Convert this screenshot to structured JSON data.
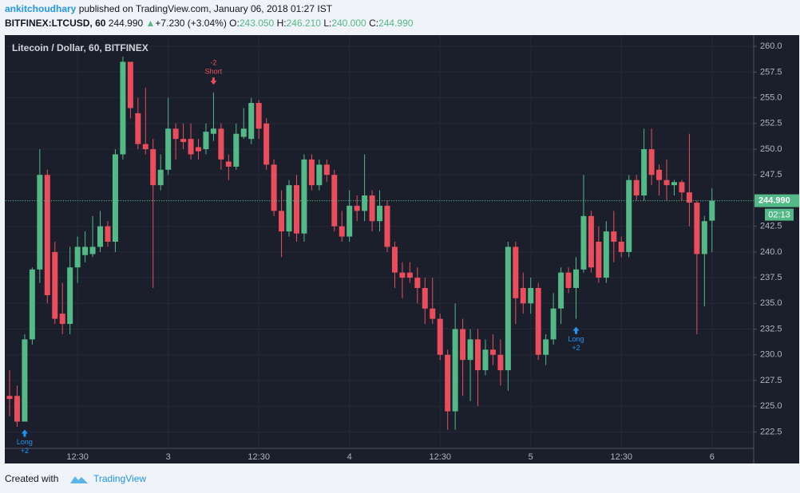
{
  "header": {
    "author": "ankitchoudhary",
    "published": "published on TradingView.com, January 06, 2018 01:27 IST",
    "symbol": "BITFINEX:LTCUSD, 60",
    "price": "244.990",
    "arrow": "▲",
    "change": "+7.230 (+3.04%)",
    "ohlc": [
      {
        "label": "O:",
        "value": "243.050"
      },
      {
        "label": "H:",
        "value": "246.210"
      },
      {
        "label": "L:",
        "value": "240.000"
      },
      {
        "label": "C:",
        "value": "244.990"
      }
    ]
  },
  "chart_data": {
    "type": "candlestick",
    "title": "Litecoin / Dollar, 60, BITFINEX",
    "categories": [
      null,
      null,
      null,
      null,
      null,
      null,
      null,
      null,
      null,
      "12:30",
      null,
      null,
      null,
      null,
      null,
      null,
      null,
      null,
      null,
      null,
      null,
      "3",
      null,
      null,
      null,
      null,
      null,
      null,
      null,
      null,
      null,
      null,
      null,
      "12:30",
      null,
      null,
      null,
      null,
      null,
      null,
      null,
      null,
      null,
      null,
      null,
      "4",
      null,
      null,
      null,
      null,
      null,
      null,
      null,
      null,
      null,
      null,
      null,
      "12:30",
      null,
      null,
      null,
      null,
      null,
      null,
      null,
      null,
      null,
      null,
      null,
      "5",
      null,
      null,
      null,
      null,
      null,
      null,
      null,
      null,
      null,
      null,
      null,
      "12:30",
      null,
      null,
      null,
      null,
      null,
      null,
      null,
      null,
      null,
      null,
      null,
      "6"
    ],
    "open": [
      226,
      226,
      223.5,
      231.5,
      238.3,
      247.5,
      240,
      234,
      233,
      238.5,
      239.7,
      239.8,
      240.5,
      242.5,
      241,
      249.5,
      258.5,
      253.5,
      250.5,
      250,
      246.5,
      248,
      252,
      251,
      251,
      250.2,
      250,
      251.5,
      252,
      248.8,
      248.3,
      251.2,
      251,
      254.5,
      252.5,
      248.5,
      244,
      242,
      246.5,
      241.8,
      249,
      246.5,
      248.5,
      247.5,
      242.5,
      241.5,
      244.5,
      244,
      245.5,
      243,
      244.5,
      240.5,
      238,
      238,
      237.5,
      236.5,
      234.5,
      233.5,
      230,
      224.5,
      232.5,
      229.5,
      231.5,
      228.5,
      230.5,
      230,
      228.5,
      240.5,
      236.5,
      235,
      236.5,
      230,
      231.5,
      234.5,
      238,
      236.5,
      238.3,
      243.5,
      241,
      237.5,
      242,
      241,
      240,
      247,
      245.5,
      250,
      248,
      247,
      246.5,
      246.8,
      245.8,
      244.8,
      239.8,
      243.05
    ],
    "high": [
      228.5,
      227,
      232,
      238.5,
      250,
      248,
      241,
      237,
      240.5,
      241.5,
      242,
      243.5,
      244,
      243,
      250,
      259,
      258.5,
      255,
      256,
      251,
      249.5,
      255,
      252.5,
      252.5,
      252.5,
      251,
      252.5,
      255.5,
      252.5,
      249.5,
      252.5,
      254,
      255,
      254.8,
      253,
      249,
      246,
      247,
      247.5,
      249.5,
      249.5,
      249,
      249,
      248,
      244,
      246,
      245.5,
      249.5,
      246,
      246,
      245,
      241,
      239,
      239,
      238.5,
      237.5,
      237.5,
      234,
      230.5,
      235,
      233.5,
      232.5,
      232.5,
      231.5,
      232,
      231.5,
      241,
      241,
      238,
      237.5,
      237,
      232,
      236,
      238.5,
      238.5,
      239.5,
      247.5,
      244,
      242.5,
      243,
      244,
      241.5,
      247.5,
      247.5,
      252,
      252,
      248.5,
      249,
      247,
      247,
      251.5,
      245,
      243.5,
      246.21
    ],
    "low": [
      224,
      223,
      223.5,
      231,
      237,
      235,
      233,
      232,
      232,
      237,
      239,
      239.5,
      240,
      240.5,
      240,
      249,
      253,
      250,
      249.5,
      236.5,
      246,
      247.5,
      249,
      250,
      249,
      249,
      249.5,
      250.8,
      248,
      247,
      248,
      251,
      250.5,
      251,
      248,
      243.5,
      239.5,
      241.5,
      241,
      241,
      246,
      246,
      246.8,
      242,
      241,
      241,
      243,
      243,
      242,
      242,
      240,
      236.5,
      235.5,
      237,
      235,
      233,
      233,
      229.5,
      222.7,
      222.7,
      226,
      225.5,
      225,
      228,
      229,
      227,
      226.5,
      233,
      234,
      234,
      229.5,
      229,
      231,
      233,
      236,
      233.5,
      238,
      238,
      237,
      237,
      239,
      239.5,
      239.5,
      245,
      245,
      246.5,
      245.5,
      245,
      245.5,
      245,
      242.5,
      232,
      234.7,
      240
    ],
    "close": [
      225.7,
      223.5,
      231.5,
      238.3,
      247.5,
      235.8,
      233.5,
      233,
      238.5,
      240.5,
      240.5,
      240.5,
      242.5,
      241,
      249.5,
      258.5,
      254,
      250.5,
      250,
      246.5,
      248,
      252,
      251,
      250.7,
      249.5,
      249.8,
      251.7,
      252,
      249,
      248.3,
      251.5,
      252,
      254.5,
      252,
      248.5,
      244,
      242,
      246.5,
      241.8,
      249,
      246.5,
      248.5,
      247.5,
      242.5,
      241.5,
      244.5,
      244,
      245.5,
      243,
      244.5,
      240.5,
      238,
      237.5,
      237.5,
      236.5,
      234.5,
      233.5,
      230,
      224.5,
      232.5,
      229.5,
      231.5,
      228.5,
      230.5,
      230,
      228.5,
      240.5,
      235.5,
      235,
      236.5,
      230,
      231.5,
      234.5,
      238,
      236.5,
      238.3,
      243.5,
      238.5,
      237.5,
      242,
      241,
      240,
      247,
      245.5,
      250,
      247.5,
      247,
      246.5,
      246.8,
      245.8,
      244.8,
      239.8,
      243,
      244.99
    ],
    "up_color": "#53b987",
    "down_color": "#eb4d5c",
    "ylim": [
      220.9,
      261.1
    ],
    "yticks": [
      {
        "value": 222.5,
        "label": "222.5"
      },
      {
        "value": 225,
        "label": "225.0"
      },
      {
        "value": 227.5,
        "label": "227.5"
      },
      {
        "value": 230,
        "label": "230.0"
      },
      {
        "value": 232.5,
        "label": "232.5"
      },
      {
        "value": 235,
        "label": "235.0"
      },
      {
        "value": 237.5,
        "label": "237.5"
      },
      {
        "value": 240,
        "label": "240.0"
      },
      {
        "value": 242.5,
        "label": "242.5"
      },
      {
        "value": 245,
        "label": "245.0"
      },
      {
        "value": 247.5,
        "label": "247.5"
      },
      {
        "value": 250,
        "label": "250.0"
      },
      {
        "value": 252.5,
        "label": "252.5"
      },
      {
        "value": 255,
        "label": "255.0"
      },
      {
        "value": 257.5,
        "label": "257.5"
      },
      {
        "value": 260,
        "label": "260.0"
      }
    ],
    "grid": true,
    "last_price": {
      "value": 244.99,
      "label": "244.990"
    },
    "countdown": "02:13",
    "annotations": [
      {
        "at": 2,
        "side": "long",
        "label": "Long",
        "qty": "+2"
      },
      {
        "at": 27,
        "side": "short",
        "label": "Short",
        "qty": "-2"
      },
      {
        "at": 75,
        "side": "long",
        "label": "Long",
        "qty": "+2"
      }
    ]
  },
  "footer": {
    "created": "Created with",
    "brand": "TradingView"
  }
}
